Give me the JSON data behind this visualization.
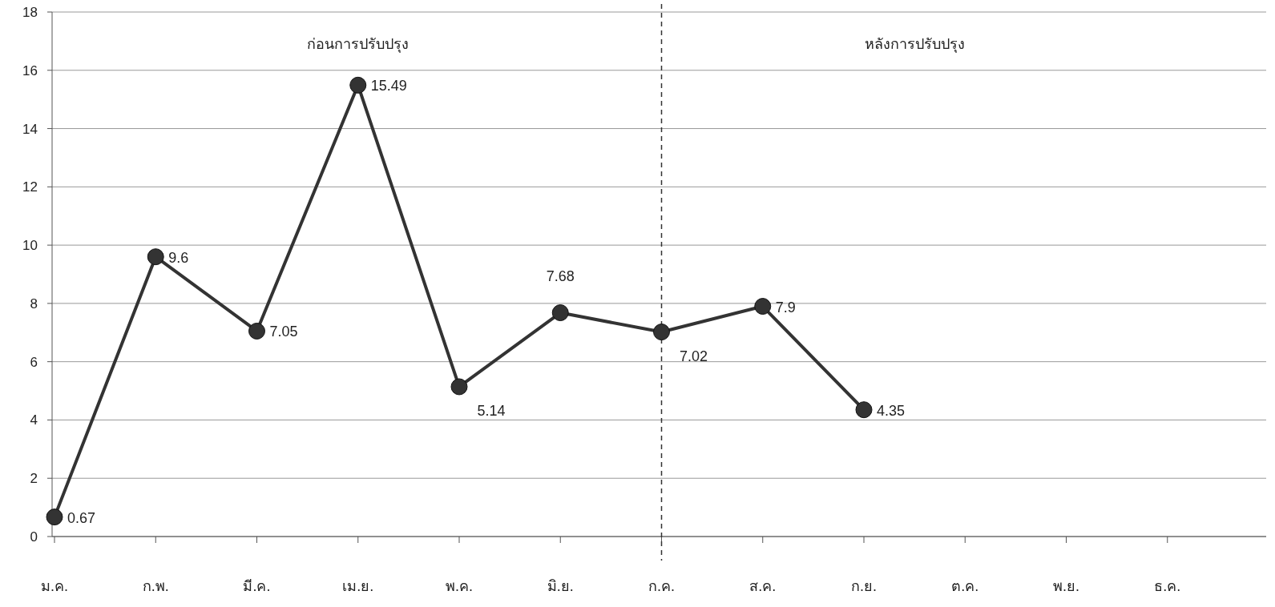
{
  "chart_data": {
    "type": "line",
    "categories": [
      "ม.ค.",
      "ก.พ.",
      "มี.ค.",
      "เม.ย.",
      "พ.ค.",
      "มิ.ย.",
      "ก.ค.",
      "ส.ค.",
      "ก.ย.",
      "ต.ค.",
      "พ.ย.",
      "ธ.ค."
    ],
    "series": [
      {
        "color": "#333333",
        "values": [
          0.67,
          9.6,
          7.05,
          15.49,
          5.14,
          7.68,
          7.02,
          7.9,
          4.35,
          null,
          null,
          null
        ]
      }
    ],
    "ylim": [
      0,
      18
    ],
    "yticks": [
      0,
      2,
      4,
      6,
      8,
      10,
      12,
      14,
      16,
      18
    ],
    "grid": "y",
    "marker": "circle",
    "line_style": "solid",
    "data_labels": true,
    "ref_lines": [
      {
        "axis": "x",
        "value": "ก.ค.",
        "line_style": "dashed",
        "color": "#333333"
      }
    ],
    "annotations": [
      "ก่อนการปรับปรุง",
      "หลังการปรับปรุง"
    ]
  }
}
